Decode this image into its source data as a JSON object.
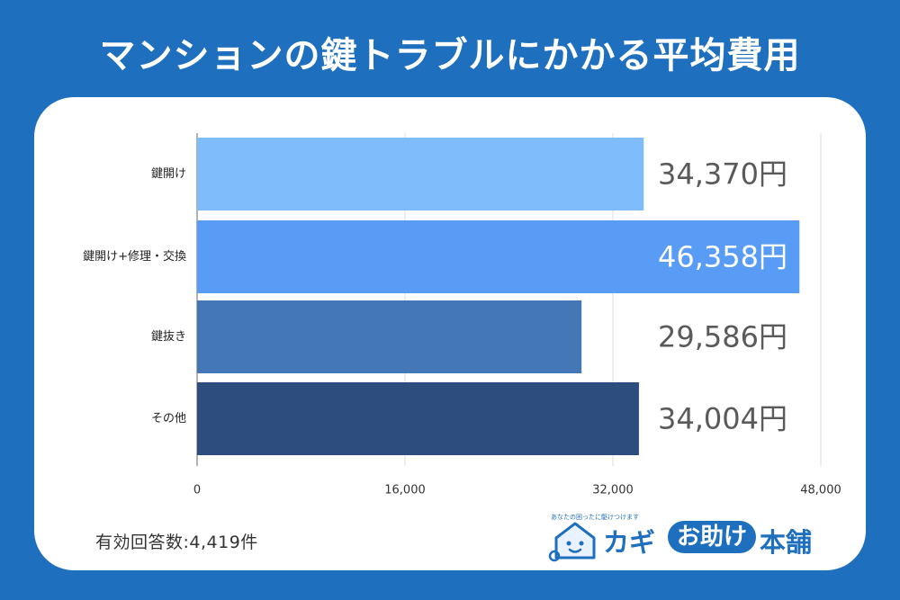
{
  "header": {
    "title": "マンションの鍵トラブルにかかる平均費用"
  },
  "chart_data": {
    "type": "bar",
    "orientation": "horizontal",
    "title": "マンションの鍵トラブルにかかる平均費用",
    "categories": [
      "鍵開け",
      "鍵開け+修理・交換",
      "鍵抜き",
      "その他"
    ],
    "values": [
      34370,
      46358,
      29586,
      34004
    ],
    "value_labels": [
      "34,370円",
      "46,358円",
      "29,586円",
      "34,004円"
    ],
    "bar_colors": [
      "#7fbcfb",
      "#589cf5",
      "#4477b6",
      "#2c4d7d"
    ],
    "value_label_colors": [
      "#5a5a5a",
      "#ffffff",
      "#5a5a5a",
      "#5a5a5a"
    ],
    "xlim": [
      0,
      48000
    ],
    "xticks": [
      0,
      16000,
      32000,
      48000
    ],
    "xtick_labels": [
      "0",
      "16,000",
      "32,000",
      "48,000"
    ],
    "grid": true,
    "xlabel": "",
    "ylabel": ""
  },
  "footnote": {
    "text": "有効回答数:4,419件"
  },
  "logo": {
    "tagline": "あなたの困ったに駆けつけます",
    "kagi": "カギ",
    "otasuke": "お助け",
    "honpo": "本舗"
  },
  "colors": {
    "background": "#1f6fbf",
    "panel": "#ffffff",
    "grid": "#dddddd",
    "tick_text": "#333333"
  }
}
